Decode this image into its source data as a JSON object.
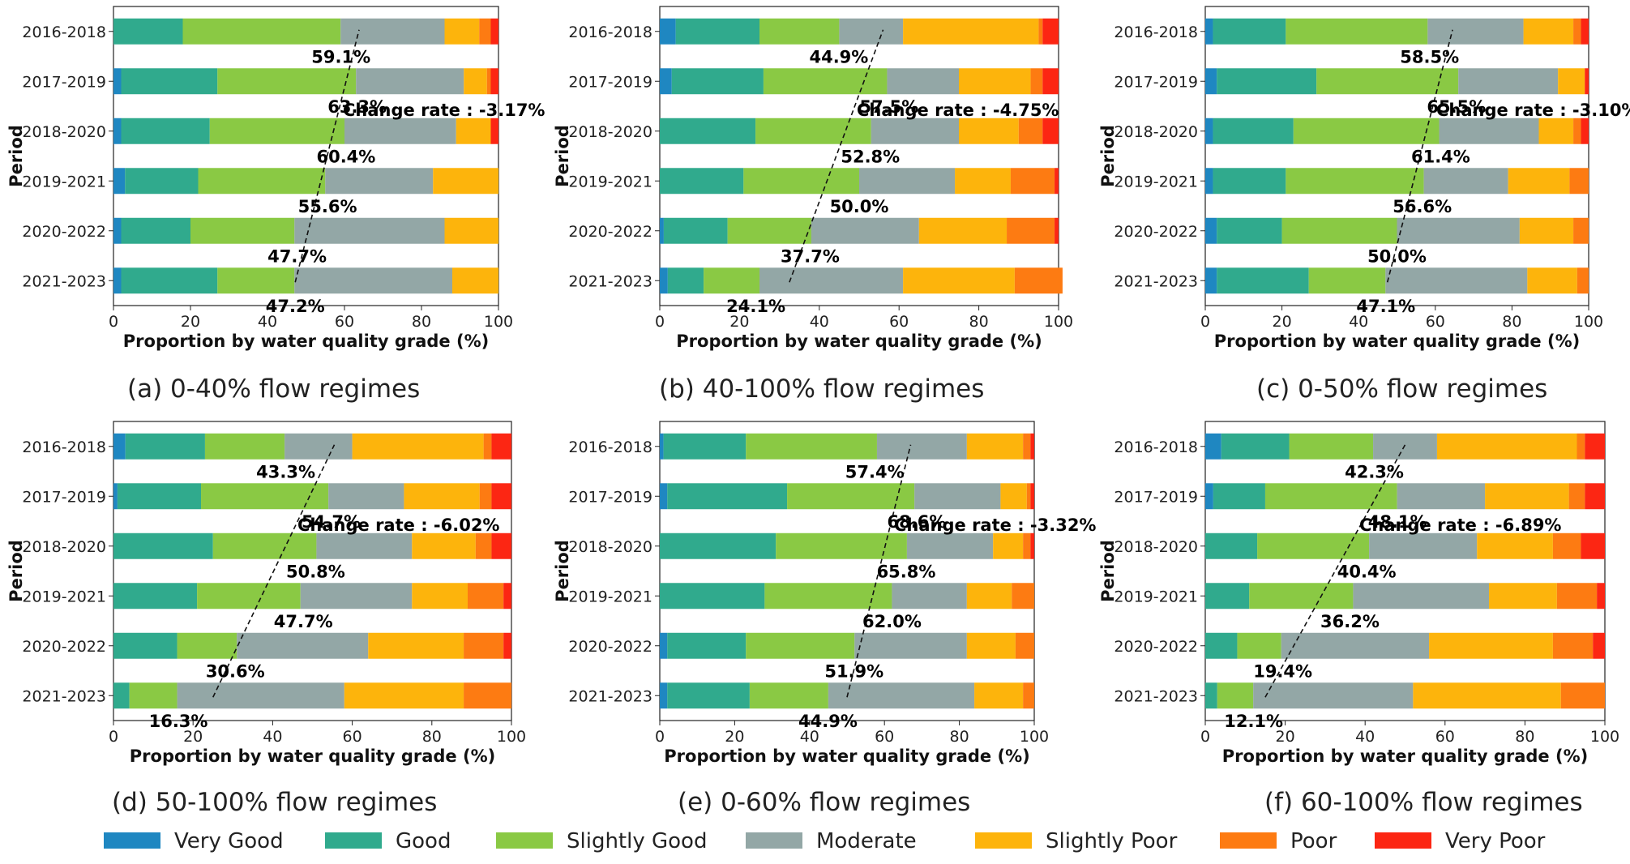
{
  "colors": {
    "very_good": "#1f87c1",
    "good": "#30aa8d",
    "slightly_good": "#8ac944",
    "moderate": "#93a7a6",
    "slightly_poor": "#fdb40c",
    "poor": "#fd7b12",
    "very_poor": "#fc2613"
  },
  "legend": {
    "items": [
      {
        "key": "very_good",
        "label": "Very Good"
      },
      {
        "key": "good",
        "label": "Good"
      },
      {
        "key": "slightly_good",
        "label": "Slightly Good"
      },
      {
        "key": "moderate",
        "label": "Moderate"
      },
      {
        "key": "slightly_poor",
        "label": "Slightly Poor"
      },
      {
        "key": "poor",
        "label": "Poor"
      },
      {
        "key": "very_poor",
        "label": "Very Poor"
      }
    ]
  },
  "chart_data": [
    {
      "type": "bar",
      "orientation": "horizontal-stacked",
      "caption": "(a) 0-40% flow regimes",
      "xlabel": "Proportion by water quality grade (%)",
      "ylabel": "Period",
      "xlim": [
        0,
        100
      ],
      "xticks": [
        "0",
        "20",
        "40",
        "60",
        "80",
        "100"
      ],
      "categories": [
        "2016-2018",
        "2017-2019",
        "2018-2020",
        "2019-2021",
        "2020-2022",
        "2021-2023"
      ],
      "series": [
        {
          "name": "Very Good",
          "key": "very_good",
          "values": [
            0,
            2,
            2,
            3,
            2,
            2
          ]
        },
        {
          "name": "Good",
          "key": "good",
          "values": [
            18,
            25,
            23,
            19,
            18,
            25
          ]
        },
        {
          "name": "Slightly Good",
          "key": "slightly_good",
          "values": [
            41,
            36,
            35,
            33,
            27,
            20
          ]
        },
        {
          "name": "Moderate",
          "key": "moderate",
          "values": [
            27,
            28,
            29,
            28,
            39,
            41
          ]
        },
        {
          "name": "Slightly Poor",
          "key": "slightly_poor",
          "values": [
            9,
            6,
            9,
            17,
            14,
            12
          ]
        },
        {
          "name": "Poor",
          "key": "poor",
          "values": [
            3,
            1,
            0,
            0,
            0,
            0
          ]
        },
        {
          "name": "Very Poor",
          "key": "very_poor",
          "values": [
            2,
            2,
            2,
            0,
            0,
            0
          ]
        }
      ],
      "good_share_labels": [
        "59.1%",
        "63.3%",
        "60.4%",
        "55.6%",
        "47.7%",
        "47.2%"
      ],
      "good_share_values": [
        59.1,
        63.3,
        60.4,
        55.6,
        47.7,
        47.2
      ],
      "trend_line": {
        "x_start": 47.2,
        "x_end": 63.8
      },
      "change_rate_label": "Change rate : -3.17%"
    },
    {
      "type": "bar",
      "orientation": "horizontal-stacked",
      "caption": "(b) 40-100% flow regimes",
      "xlabel": "Proportion by water quality grade (%)",
      "ylabel": "Period",
      "xlim": [
        0,
        100
      ],
      "xticks": [
        "0",
        "20",
        "40",
        "60",
        "80",
        "100"
      ],
      "categories": [
        "2016-2018",
        "2017-2019",
        "2018-2020",
        "2019-2021",
        "2020-2022",
        "2021-2023"
      ],
      "series": [
        {
          "name": "Very Good",
          "key": "very_good",
          "values": [
            4,
            3,
            0,
            0,
            1,
            2
          ]
        },
        {
          "name": "Good",
          "key": "good",
          "values": [
            21,
            23,
            24,
            21,
            16,
            9
          ]
        },
        {
          "name": "Slightly Good",
          "key": "slightly_good",
          "values": [
            20,
            31,
            29,
            29,
            21,
            14
          ]
        },
        {
          "name": "Moderate",
          "key": "moderate",
          "values": [
            16,
            18,
            22,
            24,
            27,
            36
          ]
        },
        {
          "name": "Slightly Poor",
          "key": "slightly_poor",
          "values": [
            34,
            18,
            15,
            14,
            22,
            28
          ]
        },
        {
          "name": "Poor",
          "key": "poor",
          "values": [
            1,
            3,
            6,
            11,
            12,
            12
          ]
        },
        {
          "name": "Very Poor",
          "key": "very_poor",
          "values": [
            4,
            4,
            4,
            1,
            1,
            0
          ]
        }
      ],
      "good_share_labels": [
        "44.9%",
        "57.5%",
        "52.8%",
        "50.0%",
        "37.7%",
        "24.1%"
      ],
      "good_share_values": [
        44.9,
        57.5,
        52.8,
        50.0,
        37.7,
        24.1
      ],
      "trend_line": {
        "x_start": 32.5,
        "x_end": 56.0
      },
      "change_rate_label": "Change rate : -4.75%"
    },
    {
      "type": "bar",
      "orientation": "horizontal-stacked",
      "caption": "(c) 0-50% flow regimes",
      "xlabel": "Proportion by water quality grade (%)",
      "ylabel": "Period",
      "xlim": [
        0,
        100
      ],
      "xticks": [
        "0",
        "20",
        "40",
        "60",
        "80",
        "100"
      ],
      "categories": [
        "2016-2018",
        "2017-2019",
        "2018-2020",
        "2019-2021",
        "2020-2022",
        "2021-2023"
      ],
      "series": [
        {
          "name": "Very Good",
          "key": "very_good",
          "values": [
            2,
            3,
            2,
            2,
            3,
            3
          ]
        },
        {
          "name": "Good",
          "key": "good",
          "values": [
            19,
            26,
            21,
            19,
            17,
            24
          ]
        },
        {
          "name": "Slightly Good",
          "key": "slightly_good",
          "values": [
            37,
            37,
            38,
            36,
            30,
            20
          ]
        },
        {
          "name": "Moderate",
          "key": "moderate",
          "values": [
            25,
            26,
            26,
            22,
            32,
            37
          ]
        },
        {
          "name": "Slightly Poor",
          "key": "slightly_poor",
          "values": [
            13,
            7,
            9,
            16,
            14,
            13
          ]
        },
        {
          "name": "Poor",
          "key": "poor",
          "values": [
            2,
            0,
            2,
            5,
            4,
            3
          ]
        },
        {
          "name": "Very Poor",
          "key": "very_poor",
          "values": [
            2,
            1,
            2,
            0,
            0,
            0
          ]
        }
      ],
      "good_share_labels": [
        "58.5%",
        "65.5%",
        "61.4%",
        "56.6%",
        "50.0%",
        "47.1%"
      ],
      "good_share_values": [
        58.5,
        65.5,
        61.4,
        56.6,
        50.0,
        47.1
      ],
      "trend_line": {
        "x_start": 47.5,
        "x_end": 64.5
      },
      "change_rate_label": "Change rate : -3.10%"
    },
    {
      "type": "bar",
      "orientation": "horizontal-stacked",
      "caption": "(d) 50-100% flow regimes",
      "xlabel": "Proportion by water quality grade (%)",
      "ylabel": "Period",
      "xlim": [
        0,
        100
      ],
      "xticks": [
        "0",
        "20",
        "40",
        "60",
        "80",
        "100"
      ],
      "categories": [
        "2016-2018",
        "2017-2019",
        "2018-2020",
        "2019-2021",
        "2020-2022",
        "2021-2023"
      ],
      "series": [
        {
          "name": "Very Good",
          "key": "very_good",
          "values": [
            3,
            1,
            0,
            0,
            0,
            0
          ]
        },
        {
          "name": "Good",
          "key": "good",
          "values": [
            20,
            21,
            25,
            21,
            16,
            4
          ]
        },
        {
          "name": "Slightly Good",
          "key": "slightly_good",
          "values": [
            20,
            32,
            26,
            26,
            15,
            12
          ]
        },
        {
          "name": "Moderate",
          "key": "moderate",
          "values": [
            17,
            19,
            24,
            28,
            33,
            42
          ]
        },
        {
          "name": "Slightly Poor",
          "key": "slightly_poor",
          "values": [
            33,
            19,
            16,
            14,
            24,
            30
          ]
        },
        {
          "name": "Poor",
          "key": "poor",
          "values": [
            2,
            3,
            4,
            9,
            10,
            12
          ]
        },
        {
          "name": "Very Poor",
          "key": "very_poor",
          "values": [
            5,
            5,
            5,
            2,
            2,
            0
          ]
        }
      ],
      "good_share_labels": [
        "43.3%",
        "54.7%",
        "50.8%",
        "47.7%",
        "30.6%",
        "16.3%"
      ],
      "good_share_values": [
        43.3,
        54.7,
        50.8,
        47.7,
        30.6,
        16.3
      ],
      "trend_line": {
        "x_start": 25.0,
        "x_end": 55.5
      },
      "change_rate_label": "Change rate : -6.02%"
    },
    {
      "type": "bar",
      "orientation": "horizontal-stacked",
      "caption": "(e) 0-60% flow regimes",
      "xlabel": "Proportion by water quality grade (%)",
      "ylabel": "Period",
      "xlim": [
        0,
        100
      ],
      "xticks": [
        "0",
        "20",
        "40",
        "60",
        "80",
        "100"
      ],
      "categories": [
        "2016-2018",
        "2017-2019",
        "2018-2020",
        "2019-2021",
        "2020-2022",
        "2021-2023"
      ],
      "series": [
        {
          "name": "Very Good",
          "key": "very_good",
          "values": [
            1,
            2,
            0,
            0,
            2,
            2
          ]
        },
        {
          "name": "Good",
          "key": "good",
          "values": [
            22,
            32,
            31,
            28,
            21,
            22
          ]
        },
        {
          "name": "Slightly Good",
          "key": "slightly_good",
          "values": [
            35,
            34,
            35,
            34,
            29,
            21
          ]
        },
        {
          "name": "Moderate",
          "key": "moderate",
          "values": [
            24,
            23,
            23,
            20,
            30,
            39
          ]
        },
        {
          "name": "Slightly Poor",
          "key": "slightly_poor",
          "values": [
            15,
            7,
            8,
            12,
            13,
            13
          ]
        },
        {
          "name": "Poor",
          "key": "poor",
          "values": [
            2,
            1,
            2,
            6,
            5,
            3
          ]
        },
        {
          "name": "Very Poor",
          "key": "very_poor",
          "values": [
            1,
            1,
            1,
            0,
            0,
            0
          ]
        }
      ],
      "good_share_labels": [
        "57.4%",
        "68.6%",
        "65.8%",
        "62.0%",
        "51.9%",
        "44.9%"
      ],
      "good_share_values": [
        57.4,
        68.6,
        65.8,
        62.0,
        51.9,
        44.9
      ],
      "trend_line": {
        "x_start": 50.0,
        "x_end": 67.0
      },
      "change_rate_label": "Change rate : -3.32%"
    },
    {
      "type": "bar",
      "orientation": "horizontal-stacked",
      "caption": "(f) 60-100% flow regimes",
      "xlabel": "Proportion by water quality grade (%)",
      "ylabel": "Period",
      "xlim": [
        0,
        100
      ],
      "xticks": [
        "0",
        "20",
        "40",
        "60",
        "80",
        "100"
      ],
      "categories": [
        "2016-2018",
        "2017-2019",
        "2018-2020",
        "2019-2021",
        "2020-2022",
        "2021-2023"
      ],
      "series": [
        {
          "name": "Very Good",
          "key": "very_good",
          "values": [
            4,
            2,
            0,
            0,
            0,
            0
          ]
        },
        {
          "name": "Good",
          "key": "good",
          "values": [
            17,
            13,
            13,
            11,
            8,
            3
          ]
        },
        {
          "name": "Slightly Good",
          "key": "slightly_good",
          "values": [
            21,
            33,
            28,
            26,
            11,
            9
          ]
        },
        {
          "name": "Moderate",
          "key": "moderate",
          "values": [
            16,
            22,
            27,
            34,
            37,
            40
          ]
        },
        {
          "name": "Slightly Poor",
          "key": "slightly_poor",
          "values": [
            35,
            21,
            19,
            17,
            31,
            37
          ]
        },
        {
          "name": "Poor",
          "key": "poor",
          "values": [
            2,
            4,
            7,
            10,
            10,
            11
          ]
        },
        {
          "name": "Very Poor",
          "key": "very_poor",
          "values": [
            5,
            5,
            6,
            2,
            3,
            0
          ]
        }
      ],
      "good_share_labels": [
        "42.3%",
        "48.1%",
        "40.4%",
        "36.2%",
        "19.4%",
        "12.1%"
      ],
      "good_share_values": [
        42.3,
        48.1,
        40.4,
        36.2,
        19.4,
        12.1
      ],
      "trend_line": {
        "x_start": 15.0,
        "x_end": 50.0
      },
      "change_rate_label": "Change rate : -6.89%"
    }
  ]
}
